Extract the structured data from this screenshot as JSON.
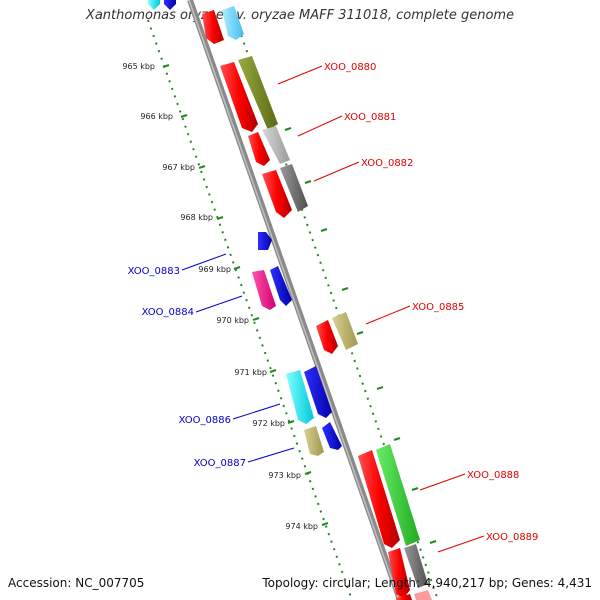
{
  "title": "Xanthomonas oryzae pv. oryzae MAFF 311018, complete genome",
  "footer": {
    "accession": "Accession: NC_007705",
    "summary": "Topology: circular; Length: 4,940,217 bp; Genes: 4,431"
  },
  "kbp_labels": [
    "965 kbp",
    "966 kbp",
    "967 kbp",
    "968 kbp",
    "969 kbp",
    "970 kbp",
    "971 kbp",
    "972 kbp",
    "973 kbp",
    "974 kbp"
  ],
  "gene_labels_right": [
    "XOO_0880",
    "XOO_0881",
    "XOO_0882",
    "XOO_0885",
    "XOO_0888",
    "XOO_0889"
  ],
  "gene_labels_left": [
    "XOO_0883",
    "XOO_0884",
    "XOO_0886",
    "XOO_0887"
  ],
  "colors": {
    "forward_label": "#e00000",
    "reverse_label": "#0000cc",
    "backbone": "#888888",
    "tick": "#228822"
  }
}
